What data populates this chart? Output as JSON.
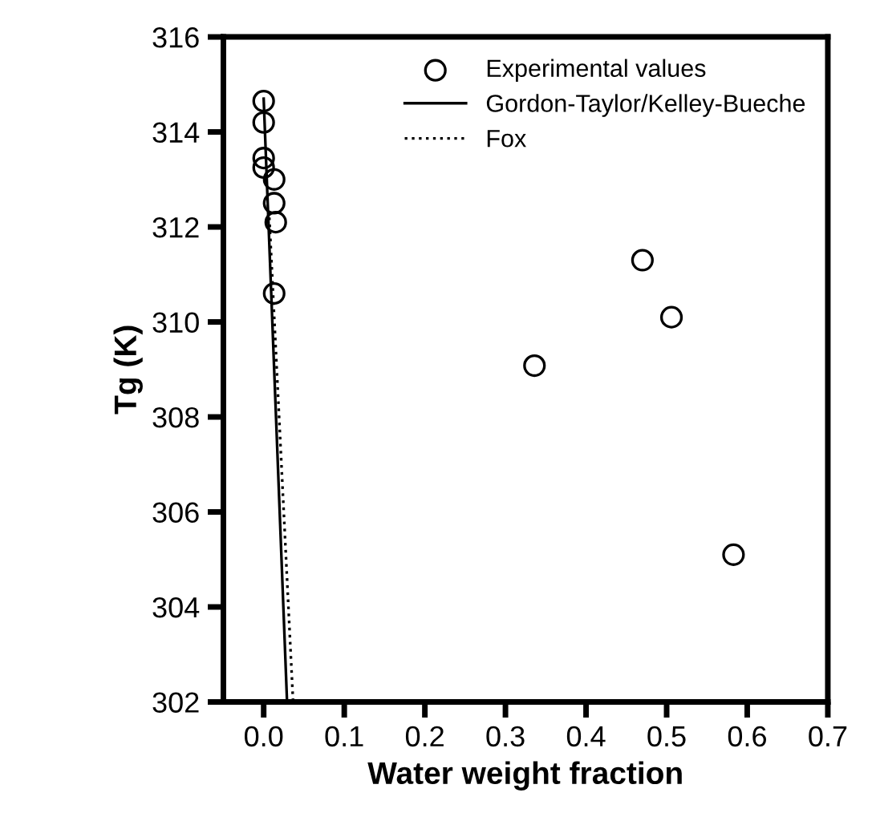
{
  "chart_data": {
    "type": "scatter",
    "xlabel": "Water weight fraction",
    "ylabel": "Tg (K)",
    "xlim": [
      -0.05,
      0.7
    ],
    "ylim": [
      302,
      316
    ],
    "xticks": [
      {
        "value": 0.0,
        "label": "0.0"
      },
      0.1,
      0.2,
      0.3,
      0.4,
      0.5,
      0.6,
      0.7
    ],
    "yticks": [
      302,
      304,
      306,
      308,
      310,
      312,
      314,
      316
    ],
    "grid": false,
    "legend": "top right",
    "series": [
      {
        "name": "Experimental values",
        "marker": "circle",
        "color": "#000000",
        "x": [
          0.0,
          0.0,
          0.0,
          0.0,
          0.013,
          0.013,
          0.015,
          0.013,
          0.336,
          0.47,
          0.506,
          0.583
        ],
        "values": [
          314.65,
          314.2,
          313.45,
          313.25,
          313.0,
          312.5,
          312.1,
          310.6,
          309.08,
          311.3,
          310.1,
          305.1
        ]
      },
      {
        "name": "Gordon-Taylor/Kelley-Bueche",
        "type": "line",
        "marker": "none",
        "line_style": "solid",
        "color": "#000000",
        "x": [
          0.0,
          0.029
        ],
        "values": [
          314.7,
          302
        ]
      },
      {
        "name": "Fox",
        "type": "line",
        "marker": "none",
        "line_style": "dotted",
        "color": "#000000",
        "x": [
          0.007,
          0.0365
        ],
        "values": [
          312.2,
          302
        ]
      }
    ]
  }
}
